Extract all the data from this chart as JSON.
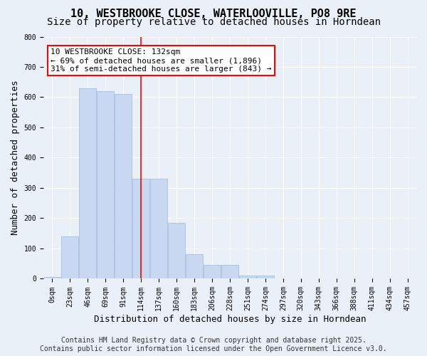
{
  "title_line1": "10, WESTBROOKE CLOSE, WATERLOOVILLE, PO8 9RE",
  "title_line2": "Size of property relative to detached houses in Horndean",
  "xlabel": "Distribution of detached houses by size in Horndean",
  "ylabel": "Number of detached properties",
  "bar_color": "#c8d8f0",
  "bar_edge_color": "#a0b8d8",
  "bin_labels": [
    "0sqm",
    "23sqm",
    "46sqm",
    "69sqm",
    "91sqm",
    "114sqm",
    "137sqm",
    "160sqm",
    "183sqm",
    "206sqm",
    "228sqm",
    "251sqm",
    "274sqm",
    "297sqm",
    "320sqm",
    "343sqm",
    "366sqm",
    "388sqm",
    "411sqm",
    "434sqm",
    "457sqm"
  ],
  "bar_values": [
    5,
    140,
    630,
    620,
    610,
    330,
    330,
    185,
    80,
    45,
    45,
    10,
    10,
    0,
    0,
    0,
    0,
    0,
    0,
    0,
    0
  ],
  "vline_x": 5.0,
  "annotation_text": "10 WESTBROOKE CLOSE: 132sqm\n← 69% of detached houses are smaller (1,896)\n31% of semi-detached houses are larger (843) →",
  "annotation_box_color": "white",
  "annotation_box_edge_color": "red",
  "vline_color": "red",
  "ylim": [
    0,
    800
  ],
  "yticks": [
    0,
    100,
    200,
    300,
    400,
    500,
    600,
    700,
    800
  ],
  "footer_line1": "Contains HM Land Registry data © Crown copyright and database right 2025.",
  "footer_line2": "Contains public sector information licensed under the Open Government Licence v3.0.",
  "bg_color": "#eaf0f8",
  "plot_bg_color": "#eaf0f8",
  "grid_color": "white",
  "title_fontsize": 11,
  "subtitle_fontsize": 10,
  "axis_label_fontsize": 9,
  "tick_fontsize": 7,
  "annotation_fontsize": 8,
  "footer_fontsize": 7
}
